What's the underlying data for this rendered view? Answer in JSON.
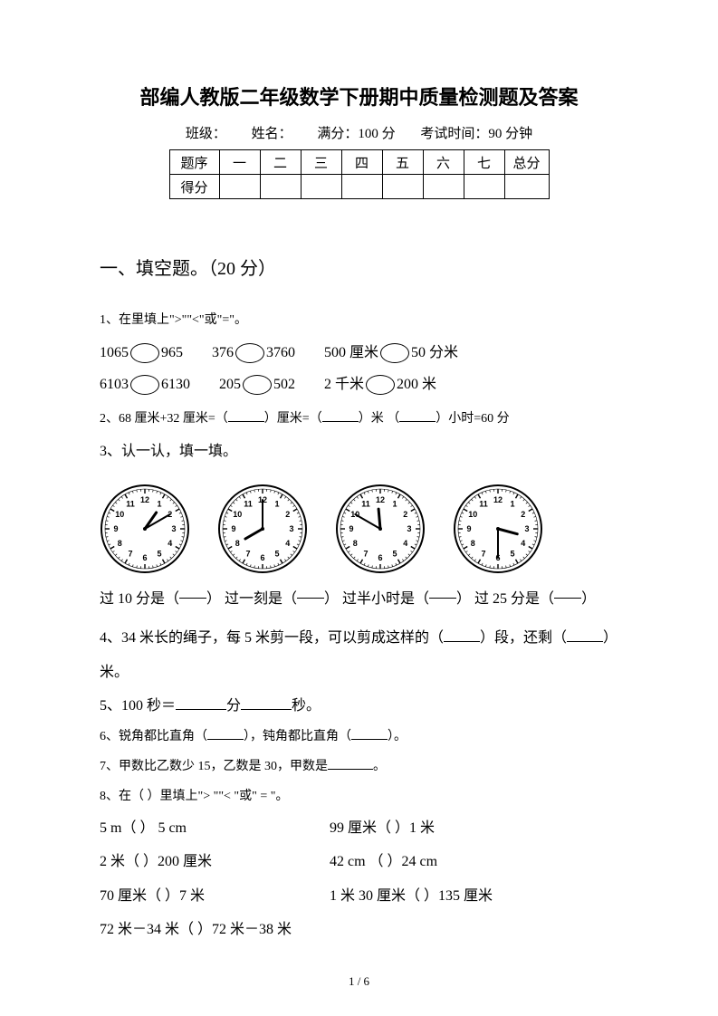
{
  "title": "部编人教版二年级数学下册期中质量检测题及答案",
  "info": {
    "class_label": "班级：",
    "name_label": "姓名：",
    "full_score_label": "满分：100 分",
    "time_label": "考试时间：90 分钟"
  },
  "score_table": {
    "row1_label": "题序",
    "cols": [
      "一",
      "二",
      "三",
      "四",
      "五",
      "六",
      "七"
    ],
    "total_label": "总分",
    "row2_label": "得分"
  },
  "section1": {
    "heading": "一、填空题。（20 分）",
    "q1": {
      "prompt": "1、在里填上\">\"\"<\"或\"=\"。",
      "row1": {
        "a": "1065",
        "b": "965",
        "c": "376",
        "d": "3760",
        "e": "500 厘米",
        "f": "50 分米"
      },
      "row2": {
        "a": "6103",
        "b": "6130",
        "c": "205",
        "d": "502",
        "e": "2 千米",
        "f": "200 米"
      }
    },
    "q2": {
      "text_a": "2、68 厘米+32 厘米=（",
      "text_b": "）厘米=（",
      "text_c": "）米    （",
      "text_d": "）小时=60 分"
    },
    "q3": {
      "prompt": "3、认一认，填一填。",
      "clocks": [
        {
          "hour_angle": 35,
          "minute_angle": 60
        },
        {
          "hour_angle": 240,
          "minute_angle": 0
        },
        {
          "hour_angle": 355,
          "minute_angle": 300
        },
        {
          "hour_angle": 105,
          "minute_angle": 180
        }
      ],
      "captions": [
        "过 10 分是（",
        "）  过一刻是（",
        "）  过半小时是（",
        "）  过 25 分是（",
        "）"
      ]
    },
    "q4": {
      "a": "4、34 米长的绳子，每 5 米剪一段，可以剪成这样的（",
      "b": "）段，还剩（",
      "c": "）",
      "d": "米。"
    },
    "q5": {
      "a": "5、100 秒＝",
      "b": "分",
      "c": "秒。"
    },
    "q6": {
      "a": "6、锐角都比直角（",
      "b": "），钝角都比直角（",
      "c": "）。"
    },
    "q7": {
      "a": "7、甲数比乙数少 15，乙数是 30，甲数是",
      "b": "。"
    },
    "q8": {
      "prompt": "8、在（ ）里填上\"> \"\"< \"或\" = \"。",
      "rows": [
        {
          "l": "5 m（  ） 5 cm",
          "r": "99 厘米（  ）1 米"
        },
        {
          "l": "2 米（  ）200 厘米",
          "r": "42 cm  （  ）24 cm"
        },
        {
          "l": "70 厘米（   ）7 米",
          "r": "1 米 30 厘米（  ）135 厘米"
        },
        {
          "l": "72 米－34 米（   ）72 米－38 米",
          "r": ""
        }
      ]
    }
  },
  "page_number": "1  /  6",
  "clock_style": {
    "face_fill": "#ffffff",
    "stroke": "#000000",
    "outer_r": 48,
    "inner_r": 44,
    "number_font": 9,
    "hour_len": 22,
    "minute_len": 32,
    "hand_width_hour": 3,
    "hand_width_min": 2
  }
}
